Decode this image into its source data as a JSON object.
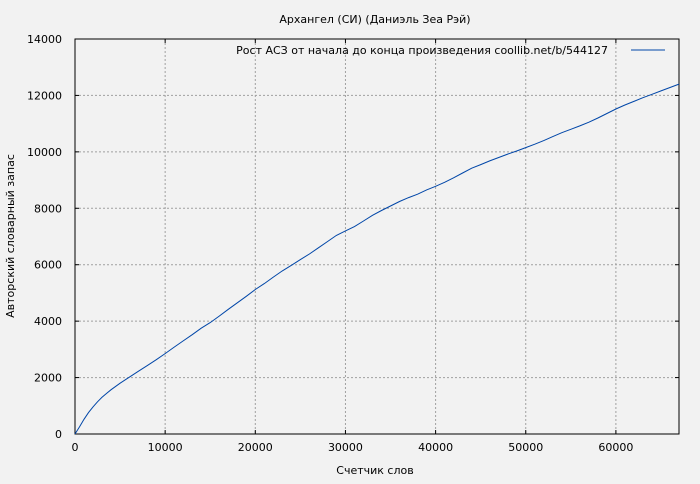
{
  "chart_data": {
    "type": "line",
    "title": "Архангел (СИ) (Даниэль Зеа Рэй)",
    "xlabel": "Счетчик слов",
    "ylabel": "Авторский словарный запас",
    "xlim": [
      0,
      67000
    ],
    "ylim": [
      0,
      14000
    ],
    "xticks": [
      0,
      10000,
      20000,
      30000,
      40000,
      50000,
      60000
    ],
    "yticks": [
      0,
      2000,
      4000,
      6000,
      8000,
      10000,
      12000,
      14000
    ],
    "grid": true,
    "legend_position": "top-right",
    "series": [
      {
        "name": "Рост АСЗ от начала до конца произведения  coollib.net/b/544127",
        "color": "#0046a8",
        "points": [
          [
            0,
            0
          ],
          [
            500,
            250
          ],
          [
            1000,
            520
          ],
          [
            1500,
            760
          ],
          [
            2000,
            960
          ],
          [
            2500,
            1140
          ],
          [
            3000,
            1300
          ],
          [
            3500,
            1440
          ],
          [
            4000,
            1570
          ],
          [
            5000,
            1800
          ],
          [
            6000,
            2010
          ],
          [
            7000,
            2220
          ],
          [
            8000,
            2420
          ],
          [
            9000,
            2630
          ],
          [
            10000,
            2850
          ],
          [
            11000,
            3080
          ],
          [
            12000,
            3300
          ],
          [
            13000,
            3520
          ],
          [
            14000,
            3750
          ],
          [
            15000,
            3950
          ],
          [
            16000,
            4180
          ],
          [
            17000,
            4420
          ],
          [
            18000,
            4650
          ],
          [
            19000,
            4880
          ],
          [
            20000,
            5120
          ],
          [
            21000,
            5330
          ],
          [
            22000,
            5560
          ],
          [
            23000,
            5780
          ],
          [
            24000,
            5980
          ],
          [
            25000,
            6180
          ],
          [
            26000,
            6380
          ],
          [
            27000,
            6600
          ],
          [
            28000,
            6820
          ],
          [
            29000,
            7040
          ],
          [
            30000,
            7200
          ],
          [
            31000,
            7350
          ],
          [
            32000,
            7550
          ],
          [
            33000,
            7750
          ],
          [
            34000,
            7920
          ],
          [
            35000,
            8080
          ],
          [
            36000,
            8240
          ],
          [
            37000,
            8380
          ],
          [
            38000,
            8500
          ],
          [
            39000,
            8650
          ],
          [
            40000,
            8780
          ],
          [
            41000,
            8920
          ],
          [
            42000,
            9080
          ],
          [
            43000,
            9250
          ],
          [
            44000,
            9420
          ],
          [
            45000,
            9550
          ],
          [
            46000,
            9680
          ],
          [
            47000,
            9800
          ],
          [
            48000,
            9920
          ],
          [
            49000,
            10030
          ],
          [
            50000,
            10150
          ],
          [
            51000,
            10270
          ],
          [
            52000,
            10400
          ],
          [
            53000,
            10540
          ],
          [
            54000,
            10680
          ],
          [
            55000,
            10800
          ],
          [
            56000,
            10920
          ],
          [
            57000,
            11050
          ],
          [
            58000,
            11200
          ],
          [
            59000,
            11360
          ],
          [
            60000,
            11520
          ],
          [
            61000,
            11660
          ],
          [
            62000,
            11790
          ],
          [
            63000,
            11920
          ],
          [
            64000,
            12040
          ],
          [
            65000,
            12160
          ],
          [
            66000,
            12280
          ],
          [
            67000,
            12400
          ]
        ]
      }
    ]
  }
}
